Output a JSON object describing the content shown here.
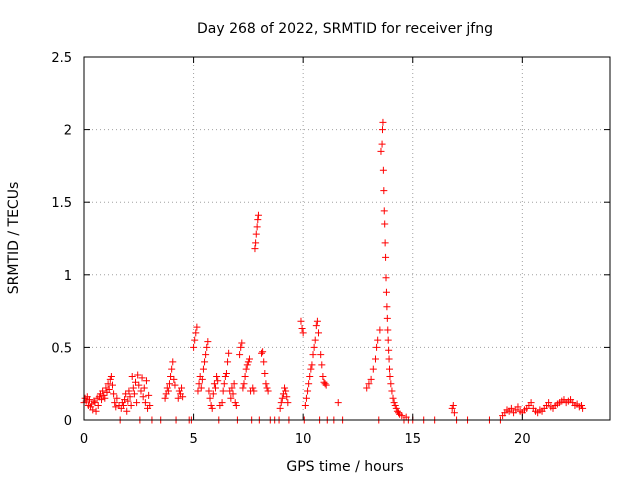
{
  "chart_data": {
    "type": "scatter",
    "title": "Day 268 of 2022, SRMTID for receiver jfng",
    "xlabel": "GPS time / hours",
    "ylabel": "SRMTID / TECUs",
    "xlim": [
      0,
      24
    ],
    "ylim": [
      0,
      2.5
    ],
    "xticks": [
      0,
      5,
      10,
      15,
      20
    ],
    "xtick_labels": [
      "0",
      "5",
      "10",
      "15",
      "20"
    ],
    "yticks": [
      0,
      0.5,
      1,
      1.5,
      2,
      2.5
    ],
    "ytick_labels": [
      "0",
      "0.5",
      "1",
      "1.5",
      "2",
      "2.5"
    ],
    "grid": true,
    "marker": "+",
    "color": "#ff0000",
    "series": [
      {
        "name": "SRMTID",
        "points": [
          [
            0.0,
            0.12
          ],
          [
            0.05,
            0.15
          ],
          [
            0.1,
            0.13
          ],
          [
            0.15,
            0.16
          ],
          [
            0.2,
            0.1
          ],
          [
            0.25,
            0.14
          ],
          [
            0.3,
            0.09
          ],
          [
            0.35,
            0.11
          ],
          [
            0.4,
            0.07
          ],
          [
            0.45,
            0.13
          ],
          [
            0.5,
            0.12
          ],
          [
            0.55,
            0.06
          ],
          [
            0.6,
            0.15
          ],
          [
            0.65,
            0.1
          ],
          [
            0.7,
            0.16
          ],
          [
            0.75,
            0.18
          ],
          [
            0.8,
            0.14
          ],
          [
            0.85,
            0.2
          ],
          [
            0.9,
            0.17
          ],
          [
            0.95,
            0.15
          ],
          [
            1.0,
            0.22
          ],
          [
            1.05,
            0.19
          ],
          [
            1.1,
            0.25
          ],
          [
            1.15,
            0.21
          ],
          [
            1.2,
            0.28
          ],
          [
            1.25,
            0.3
          ],
          [
            1.3,
            0.24
          ],
          [
            1.35,
            0.18
          ],
          [
            1.4,
            0.12
          ],
          [
            1.45,
            0.09
          ],
          [
            1.5,
            0.15
          ],
          [
            1.6,
            0.1
          ],
          [
            1.65,
            0.0
          ],
          [
            1.7,
            0.08
          ],
          [
            1.75,
            0.12
          ],
          [
            1.8,
            0.1
          ],
          [
            1.85,
            0.14
          ],
          [
            1.9,
            0.18
          ],
          [
            1.95,
            0.06
          ],
          [
            2.0,
            0.13
          ],
          [
            2.05,
            0.2
          ],
          [
            2.1,
            0.16
          ],
          [
            2.15,
            0.1
          ],
          [
            2.2,
            0.3
          ],
          [
            2.25,
            0.22
          ],
          [
            2.3,
            0.18
          ],
          [
            2.35,
            0.26
          ],
          [
            2.4,
            0.12
          ],
          [
            2.45,
            0.31
          ],
          [
            2.5,
            0.24
          ],
          [
            2.55,
            0.0
          ],
          [
            2.6,
            0.2
          ],
          [
            2.65,
            0.29
          ],
          [
            2.7,
            0.16
          ],
          [
            2.75,
            0.22
          ],
          [
            2.8,
            0.12
          ],
          [
            2.85,
            0.27
          ],
          [
            2.9,
            0.08
          ],
          [
            2.95,
            0.17
          ],
          [
            3.0,
            0.1
          ],
          [
            3.1,
            0.0
          ],
          [
            3.5,
            0.0
          ],
          [
            3.7,
            0.15
          ],
          [
            3.75,
            0.18
          ],
          [
            3.8,
            0.22
          ],
          [
            3.85,
            0.2
          ],
          [
            3.9,
            0.25
          ],
          [
            3.95,
            0.3
          ],
          [
            4.0,
            0.35
          ],
          [
            4.05,
            0.4
          ],
          [
            4.1,
            0.28
          ],
          [
            4.15,
            0.24
          ],
          [
            4.2,
            0.0
          ],
          [
            4.3,
            0.15
          ],
          [
            4.35,
            0.2
          ],
          [
            4.4,
            0.18
          ],
          [
            4.45,
            0.22
          ],
          [
            4.5,
            0.16
          ],
          [
            4.8,
            0.0
          ],
          [
            4.9,
            0.0
          ],
          [
            5.0,
            0.5
          ],
          [
            5.05,
            0.55
          ],
          [
            5.1,
            0.6
          ],
          [
            5.15,
            0.64
          ],
          [
            5.2,
            0.2
          ],
          [
            5.25,
            0.25
          ],
          [
            5.3,
            0.3
          ],
          [
            5.35,
            0.22
          ],
          [
            5.4,
            0.28
          ],
          [
            5.45,
            0.35
          ],
          [
            5.5,
            0.4
          ],
          [
            5.55,
            0.45
          ],
          [
            5.6,
            0.5
          ],
          [
            5.65,
            0.54
          ],
          [
            5.7,
            0.2
          ],
          [
            5.75,
            0.15
          ],
          [
            5.8,
            0.1
          ],
          [
            5.85,
            0.08
          ],
          [
            5.9,
            0.18
          ],
          [
            5.95,
            0.25
          ],
          [
            6.0,
            0.22
          ],
          [
            6.05,
            0.3
          ],
          [
            6.1,
            0.27
          ],
          [
            6.15,
            0.0
          ],
          [
            6.2,
            0.1
          ],
          [
            6.3,
            0.12
          ],
          [
            6.35,
            0.2
          ],
          [
            6.4,
            0.25
          ],
          [
            6.45,
            0.3
          ],
          [
            6.5,
            0.32
          ],
          [
            6.55,
            0.4
          ],
          [
            6.6,
            0.46
          ],
          [
            6.65,
            0.2
          ],
          [
            6.7,
            0.15
          ],
          [
            6.75,
            0.22
          ],
          [
            6.8,
            0.18
          ],
          [
            6.85,
            0.25
          ],
          [
            6.9,
            0.12
          ],
          [
            6.95,
            0.1
          ],
          [
            7.0,
            0.0
          ],
          [
            7.1,
            0.45
          ],
          [
            7.15,
            0.5
          ],
          [
            7.2,
            0.53
          ],
          [
            7.25,
            0.22
          ],
          [
            7.3,
            0.25
          ],
          [
            7.35,
            0.3
          ],
          [
            7.4,
            0.35
          ],
          [
            7.45,
            0.38
          ],
          [
            7.5,
            0.4
          ],
          [
            7.55,
            0.42
          ],
          [
            7.6,
            0.2
          ],
          [
            7.65,
            0.0
          ],
          [
            7.7,
            0.22
          ],
          [
            7.75,
            0.2
          ],
          [
            7.8,
            1.18
          ],
          [
            7.83,
            1.22
          ],
          [
            7.86,
            1.28
          ],
          [
            7.9,
            1.33
          ],
          [
            7.93,
            1.38
          ],
          [
            7.96,
            1.41
          ],
          [
            8.0,
            0.0
          ],
          [
            8.1,
            0.46
          ],
          [
            8.15,
            0.47
          ],
          [
            8.2,
            0.4
          ],
          [
            8.25,
            0.32
          ],
          [
            8.3,
            0.25
          ],
          [
            8.35,
            0.22
          ],
          [
            8.4,
            0.2
          ],
          [
            8.5,
            0.0
          ],
          [
            8.7,
            0.0
          ],
          [
            8.9,
            0.0
          ],
          [
            8.95,
            0.08
          ],
          [
            9.0,
            0.12
          ],
          [
            9.05,
            0.15
          ],
          [
            9.1,
            0.18
          ],
          [
            9.15,
            0.22
          ],
          [
            9.2,
            0.2
          ],
          [
            9.25,
            0.16
          ],
          [
            9.3,
            0.12
          ],
          [
            9.35,
            0.0
          ],
          [
            9.9,
            0.68
          ],
          [
            9.95,
            0.63
          ],
          [
            10.0,
            0.6
          ],
          [
            10.05,
            0.0
          ],
          [
            10.1,
            0.1
          ],
          [
            10.15,
            0.15
          ],
          [
            10.2,
            0.2
          ],
          [
            10.25,
            0.25
          ],
          [
            10.3,
            0.3
          ],
          [
            10.35,
            0.35
          ],
          [
            10.4,
            0.38
          ],
          [
            10.45,
            0.45
          ],
          [
            10.5,
            0.5
          ],
          [
            10.55,
            0.55
          ],
          [
            10.6,
            0.65
          ],
          [
            10.65,
            0.68
          ],
          [
            10.7,
            0.6
          ],
          [
            10.75,
            0.0
          ],
          [
            10.8,
            0.45
          ],
          [
            10.85,
            0.38
          ],
          [
            10.9,
            0.3
          ],
          [
            10.95,
            0.26
          ],
          [
            11.0,
            0.25
          ],
          [
            11.05,
            0.24
          ],
          [
            11.1,
            0.0
          ],
          [
            11.4,
            0.0
          ],
          [
            11.6,
            0.12
          ],
          [
            11.8,
            0.0
          ],
          [
            12.9,
            0.22
          ],
          [
            13.0,
            0.25
          ],
          [
            13.1,
            0.28
          ],
          [
            13.2,
            0.35
          ],
          [
            13.3,
            0.42
          ],
          [
            13.35,
            0.5
          ],
          [
            13.4,
            0.55
          ],
          [
            13.45,
            0.0
          ],
          [
            13.5,
            0.62
          ],
          [
            13.55,
            1.85
          ],
          [
            13.6,
            1.9
          ],
          [
            13.62,
            2.0
          ],
          [
            13.64,
            2.05
          ],
          [
            13.66,
            1.72
          ],
          [
            13.68,
            1.58
          ],
          [
            13.7,
            1.44
          ],
          [
            13.72,
            1.35
          ],
          [
            13.74,
            1.22
          ],
          [
            13.76,
            1.12
          ],
          [
            13.78,
            0.98
          ],
          [
            13.8,
            0.88
          ],
          [
            13.82,
            0.78
          ],
          [
            13.84,
            0.7
          ],
          [
            13.86,
            0.62
          ],
          [
            13.88,
            0.55
          ],
          [
            13.9,
            0.48
          ],
          [
            13.92,
            0.42
          ],
          [
            13.94,
            0.35
          ],
          [
            13.96,
            0.3
          ],
          [
            14.0,
            0.25
          ],
          [
            14.05,
            0.2
          ],
          [
            14.1,
            0.15
          ],
          [
            14.15,
            0.12
          ],
          [
            14.2,
            0.1
          ],
          [
            14.25,
            0.08
          ],
          [
            14.3,
            0.06
          ],
          [
            14.35,
            0.05
          ],
          [
            14.4,
            0.04
          ],
          [
            14.5,
            0.03
          ],
          [
            14.6,
            0.0
          ],
          [
            14.7,
            0.02
          ],
          [
            14.8,
            0.0
          ],
          [
            15.0,
            0.0
          ],
          [
            15.5,
            0.0
          ],
          [
            16.0,
            0.0
          ],
          [
            16.8,
            0.08
          ],
          [
            16.85,
            0.1
          ],
          [
            16.9,
            0.05
          ],
          [
            17.0,
            0.0
          ],
          [
            17.5,
            0.0
          ],
          [
            18.5,
            0.0
          ],
          [
            19.0,
            0.0
          ],
          [
            19.1,
            0.03
          ],
          [
            19.2,
            0.05
          ],
          [
            19.3,
            0.07
          ],
          [
            19.4,
            0.06
          ],
          [
            19.5,
            0.08
          ],
          [
            19.6,
            0.05
          ],
          [
            19.7,
            0.07
          ],
          [
            19.8,
            0.09
          ],
          [
            19.9,
            0.06
          ],
          [
            20.0,
            0.05
          ],
          [
            20.1,
            0.07
          ],
          [
            20.2,
            0.08
          ],
          [
            20.3,
            0.1
          ],
          [
            20.4,
            0.12
          ],
          [
            20.5,
            0.08
          ],
          [
            20.6,
            0.06
          ],
          [
            20.7,
            0.05
          ],
          [
            20.8,
            0.07
          ],
          [
            20.9,
            0.06
          ],
          [
            21.0,
            0.08
          ],
          [
            21.1,
            0.1
          ],
          [
            21.2,
            0.12
          ],
          [
            21.3,
            0.09
          ],
          [
            21.4,
            0.08
          ],
          [
            21.5,
            0.1
          ],
          [
            21.6,
            0.11
          ],
          [
            21.7,
            0.12
          ],
          [
            21.8,
            0.13
          ],
          [
            21.9,
            0.14
          ],
          [
            22.0,
            0.12
          ],
          [
            22.1,
            0.13
          ],
          [
            22.2,
            0.14
          ],
          [
            22.3,
            0.12
          ],
          [
            22.4,
            0.1
          ],
          [
            22.5,
            0.11
          ],
          [
            22.6,
            0.09
          ],
          [
            22.7,
            0.1
          ],
          [
            22.75,
            0.08
          ]
        ]
      }
    ]
  }
}
